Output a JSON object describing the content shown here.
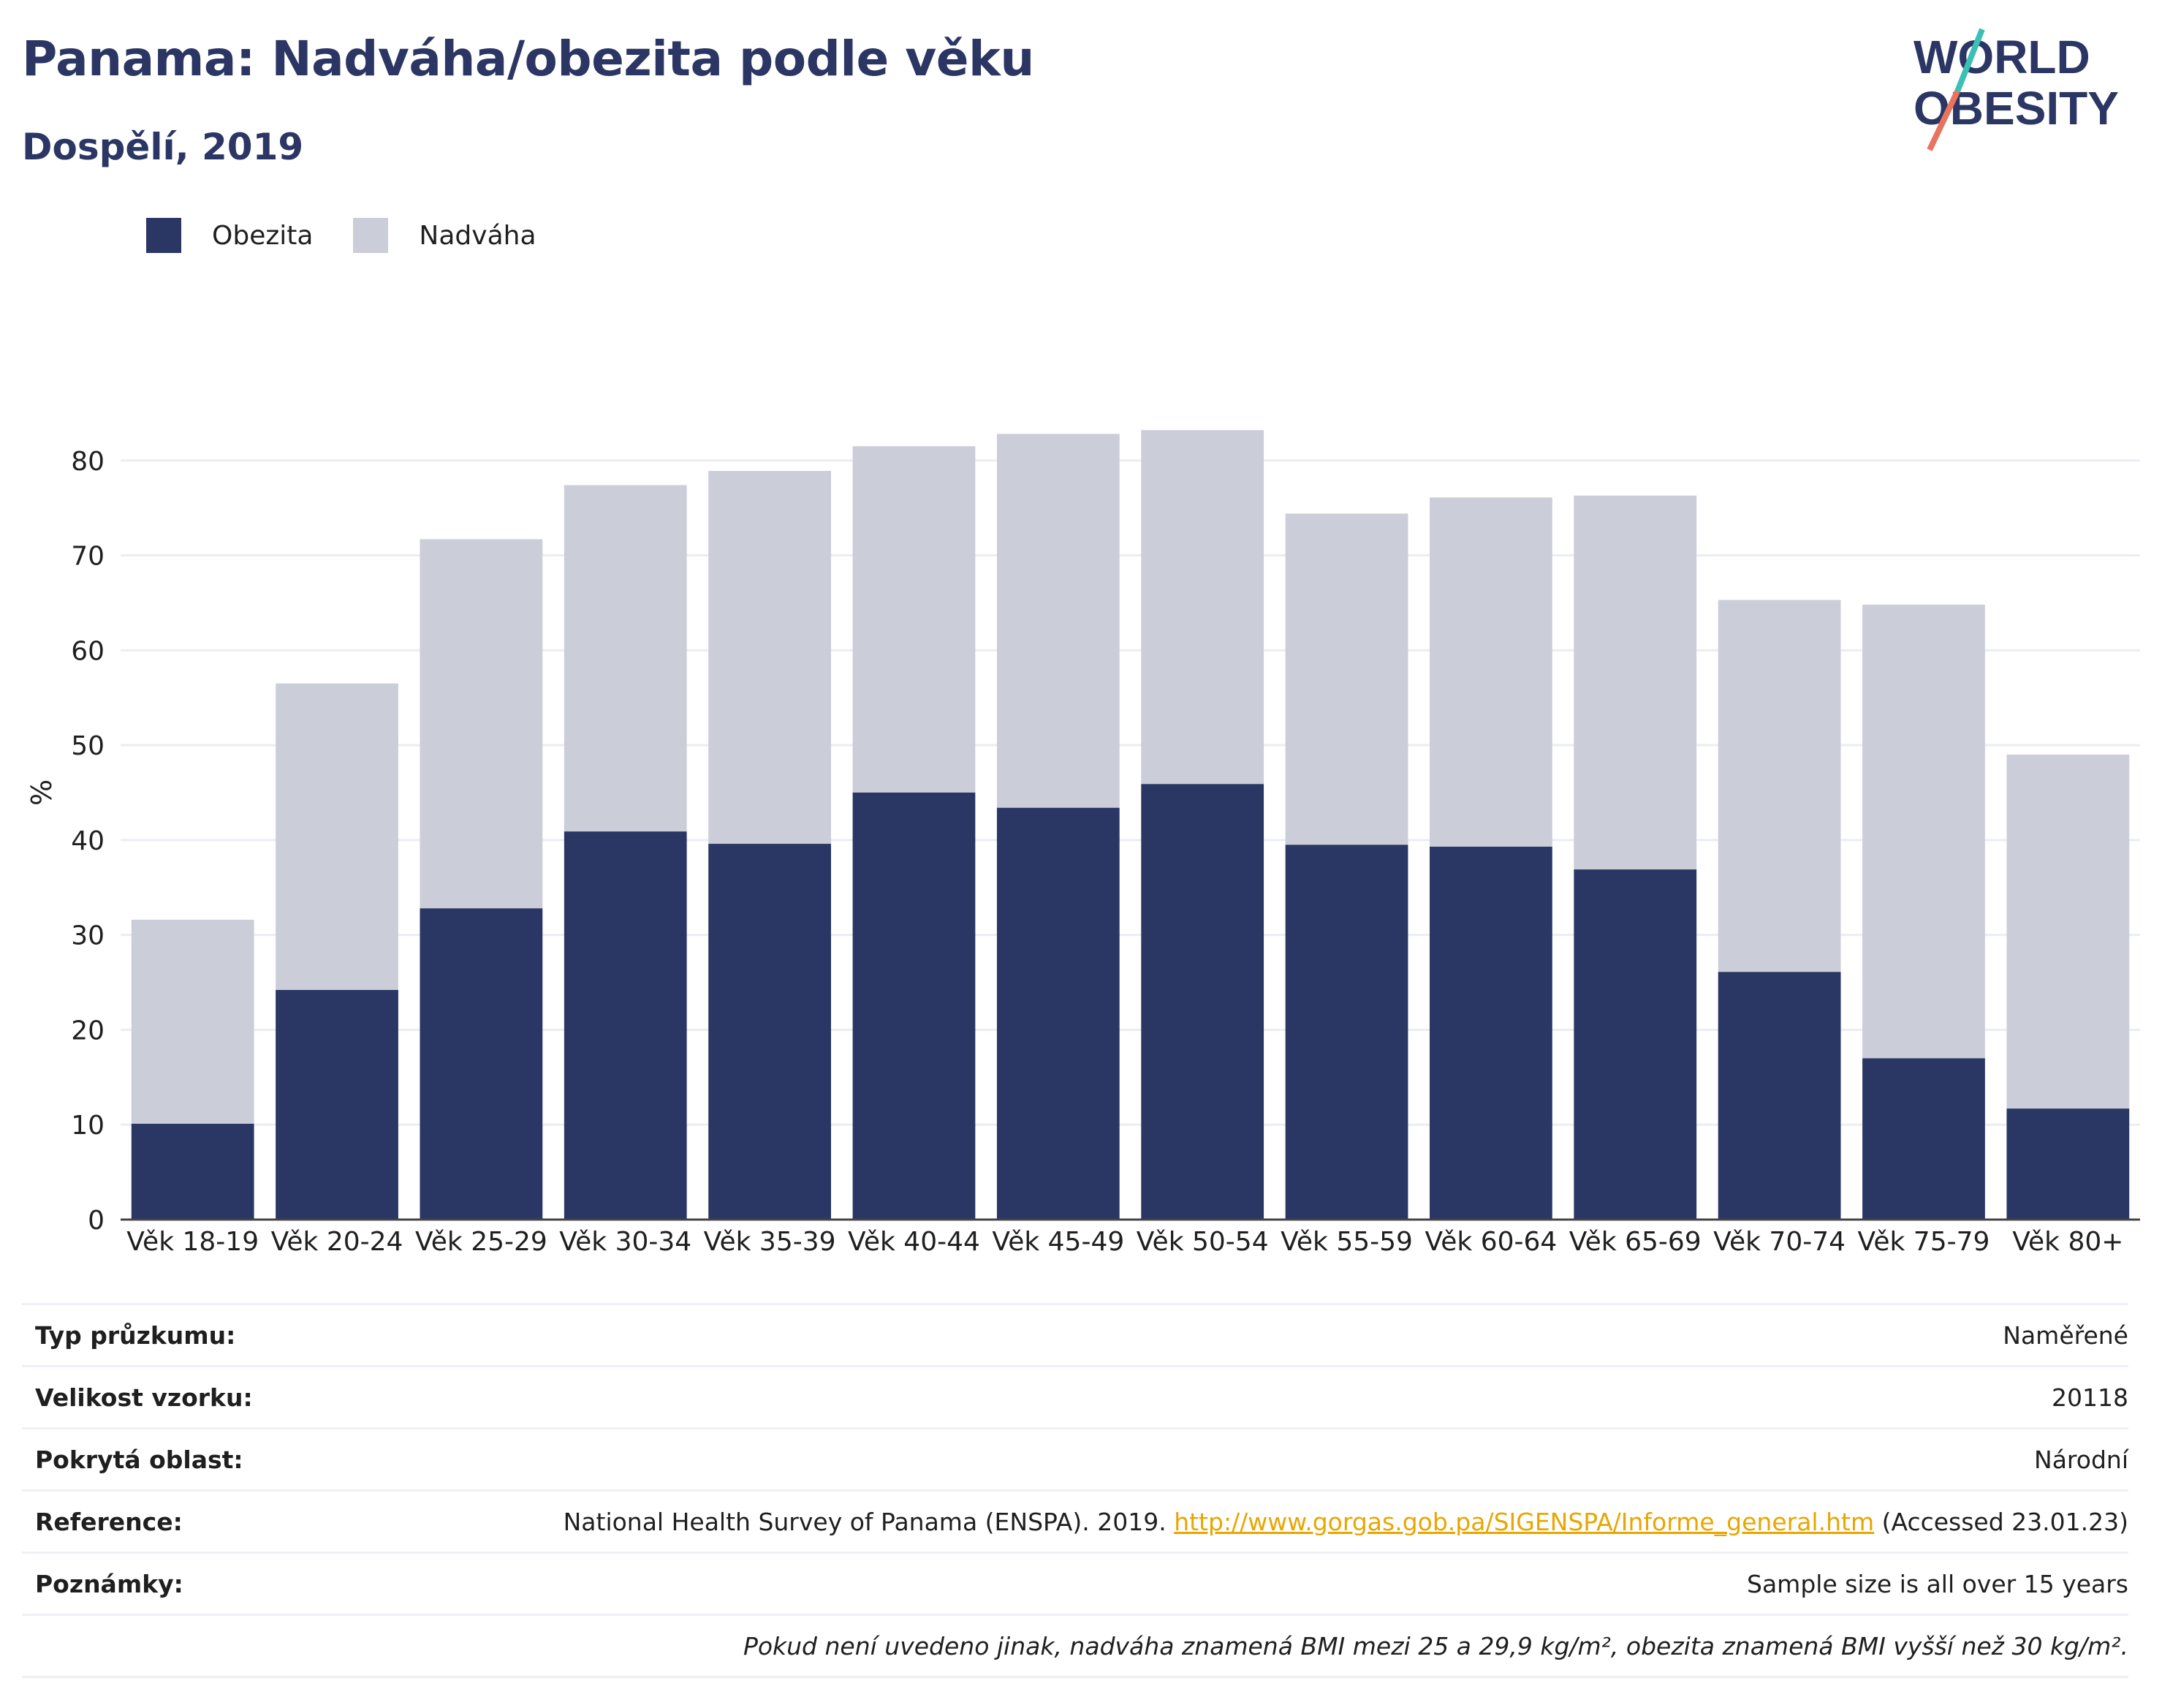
{
  "header": {
    "title": "Panama: Nadváha/obezita podle věku",
    "subtitle": "Dospělí, 2019",
    "logo_line1": "WORLD",
    "logo_line2": "OBESITY"
  },
  "colors": {
    "obesity": "#2a3663",
    "overweight": "#cbcdd8",
    "title": "#2b3664",
    "link": "#e8a600",
    "logo_teal": "#3cbfb4",
    "logo_coral": "#e8735f"
  },
  "legend": [
    {
      "label": "Obezita",
      "color": "#2a3663"
    },
    {
      "label": "Nadváha",
      "color": "#cbcdd8"
    }
  ],
  "chart_data": {
    "type": "bar",
    "stacked": true,
    "categories": [
      "Věk 18-19",
      "Věk 20-24",
      "Věk 25-29",
      "Věk 30-34",
      "Věk 35-39",
      "Věk 40-44",
      "Věk 45-49",
      "Věk 50-54",
      "Věk 55-59",
      "Věk 60-64",
      "Věk 65-69",
      "Věk 70-74",
      "Věk 75-79",
      "Věk 80+"
    ],
    "series": [
      {
        "name": "Obezita",
        "values": [
          10.1,
          24.2,
          32.8,
          40.9,
          39.6,
          45.0,
          43.4,
          45.9,
          39.5,
          39.3,
          36.9,
          26.1,
          17.0,
          11.7
        ]
      },
      {
        "name": "Nadváha",
        "values": [
          21.5,
          32.3,
          38.9,
          36.5,
          39.3,
          36.5,
          39.4,
          37.3,
          34.9,
          36.8,
          39.4,
          39.2,
          47.8,
          37.3
        ]
      }
    ],
    "ylabel": "%",
    "xlabel": "",
    "ylim": [
      0,
      90
    ],
    "yticks": [
      0,
      10,
      20,
      30,
      40,
      50,
      60,
      70,
      80
    ],
    "grid": true,
    "legend_position": "top-left"
  },
  "info": [
    {
      "label": "Typ průzkumu:",
      "value": "Naměřené"
    },
    {
      "label": "Velikost vzorku:",
      "value": "20118"
    },
    {
      "label": "Pokrytá oblast:",
      "value": "Národní"
    },
    {
      "label": "Reference:",
      "value_pre": "National Health Survey of Panama (ENSPA). 2019. ",
      "value_link": "http://www.gorgas.gob.pa/SIGENSPA/Informe_general.htm",
      "value_post": " (Accessed 23.01.23)"
    },
    {
      "label": "Poznámky:",
      "value": "Sample size is all over 15 years"
    },
    {
      "label": "",
      "value": "Pokud není uvedeno jinak, nadváha znamená BMI mezi 25 a 29,9 kg/m², obezita znamená BMI vyšší než 30 kg/m²."
    }
  ]
}
